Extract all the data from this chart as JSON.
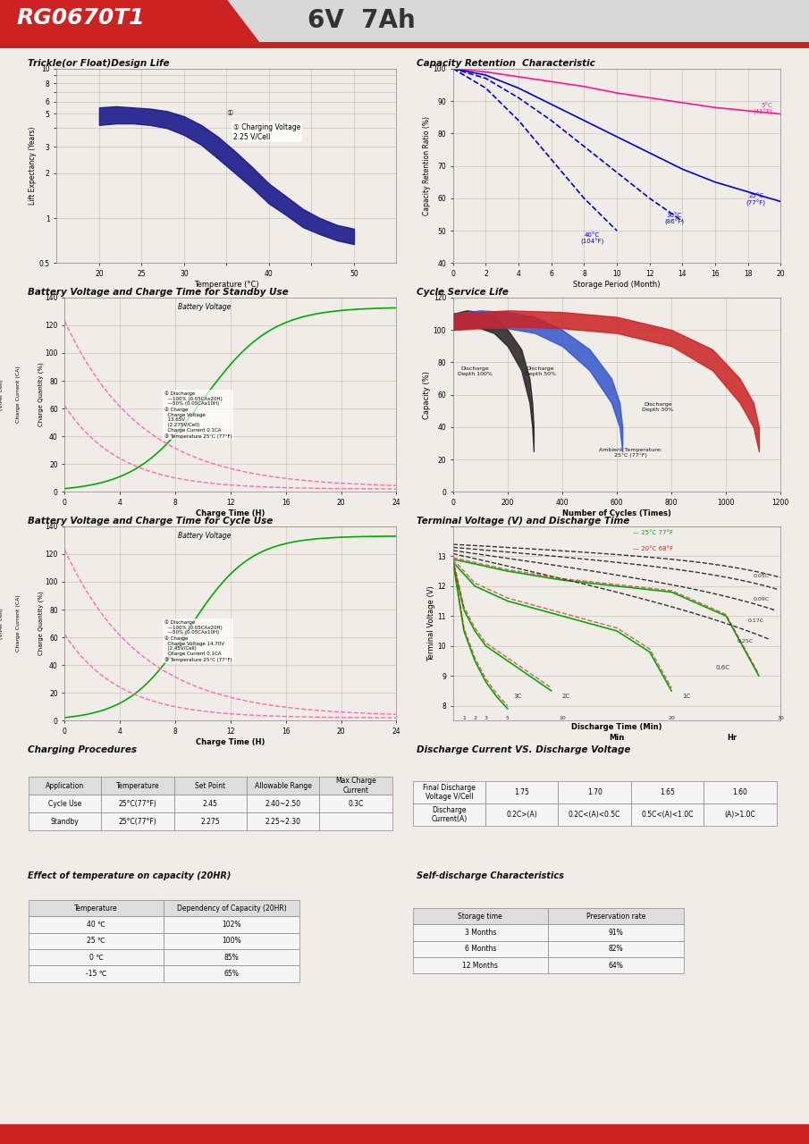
{
  "title_model": "RG0670T1",
  "title_spec": "6V  7Ah",
  "header_bg": "#cc2222",
  "header_text_color": "#ffffff",
  "subheader_bg": "#e8e8e8",
  "page_bg": "#ffffff",
  "grid_bg": "#f0ede8",
  "grid_line_color": "#c8b8a8",
  "section_title_color": "#222222",
  "trickle_title": "Trickle(or Float)Design Life",
  "trickle_xlabel": "Temperature (°C)",
  "trickle_ylabel": "Lift Expectancy (Years)",
  "trickle_annotation": "① Charging Voltage\n2.25 V/Cell",
  "cap_ret_title": "Capacity Retention  Characteristic",
  "cap_ret_xlabel": "Storage Period (Month)",
  "cap_ret_ylabel": "Capacity Retention Ratio (%)",
  "cap_ret_curves": [
    {
      "label": "5°C\n(41°F)",
      "color": "#ff69b4",
      "style": "solid"
    },
    {
      "label": "25°C\n(77°F)",
      "color": "#0000cc",
      "style": "dashed"
    },
    {
      "label": "30°C\n(86°F)",
      "color": "#0000cc",
      "style": "dashed"
    },
    {
      "label": "40°C\n(104°F)",
      "color": "#0000cc",
      "style": "dashed"
    }
  ],
  "bvct_standby_title": "Battery Voltage and Charge Time for Standby Use",
  "bvct_cycle_title": "Battery Voltage and Charge Time for Cycle Use",
  "bvct_xlabel": "Charge Time (H)",
  "cycle_title": "Cycle Service Life",
  "cycle_xlabel": "Number of Cycles (Times)",
  "cycle_ylabel": "Capacity (%)",
  "terminal_title": "Terminal Voltage (V) and Discharge Time",
  "terminal_xlabel": "Discharge Time (Min)",
  "terminal_ylabel": "Terminal Voltage (V)",
  "footer_bg": "#cc2222",
  "charge_proc_title": "Charging Procedures",
  "charge_table": {
    "headers": [
      "Application",
      "Temperature",
      "Set Point",
      "Allowable Range",
      "Max.Charge Current"
    ],
    "rows": [
      [
        "Cycle Use",
        "25°C(77°F)",
        "2.45",
        "2.40~2.50",
        "0.3C"
      ],
      [
        "Standby",
        "25°C(77°F)",
        "2.275",
        "2.25~2.30",
        ""
      ]
    ]
  },
  "discharge_cv_title": "Discharge Current VS. Discharge Voltage",
  "discharge_cv_table": {
    "row1_label": "Final Discharge\nVoltage V/Cell",
    "row1_vals": [
      "1.75",
      "1.70",
      "1.65",
      "1.60"
    ],
    "row2_label": "Discharge\nCurrent(A)",
    "row2_vals": [
      "0.2C>(A)",
      "0.2C<(A)<0.5C",
      "0.5C<(A)<1.0C",
      "(A)>1.0C"
    ]
  },
  "temp_cap_title": "Effect of temperature on capacity (20HR)",
  "temp_cap_table": {
    "headers": [
      "Temperature",
      "Dependency of Capacity (20HR)"
    ],
    "rows": [
      [
        "40 ℃",
        "102%"
      ],
      [
        "25 ℃",
        "100%"
      ],
      [
        "0 ℃",
        "85%"
      ],
      [
        "-15 ℃",
        "65%"
      ]
    ]
  },
  "self_discharge_title": "Self-discharge Characteristics",
  "self_discharge_table": {
    "headers": [
      "Storage time",
      "Preservation rate"
    ],
    "rows": [
      [
        "3 Months",
        "91%"
      ],
      [
        "6 Months",
        "82%"
      ],
      [
        "12 Months",
        "64%"
      ]
    ]
  }
}
